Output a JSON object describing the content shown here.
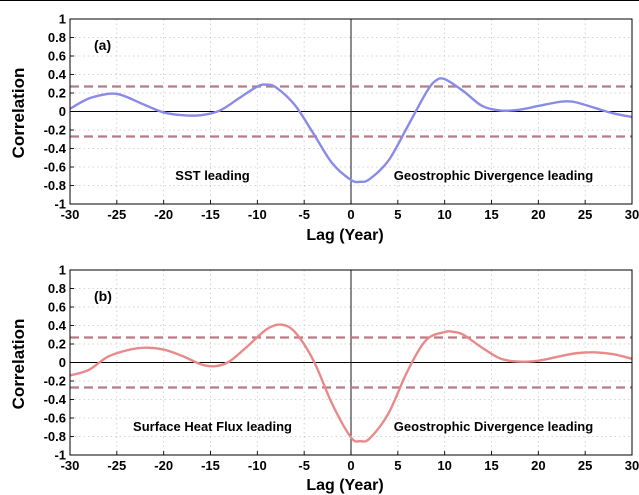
{
  "chart_data": [
    {
      "type": "line",
      "panel_label": "(a)",
      "xlabel": "Lag (Year)",
      "ylabel": "Correlation",
      "xlim": [
        -30,
        30
      ],
      "ylim": [
        -1,
        1
      ],
      "xticks": [
        -30,
        -25,
        -20,
        -15,
        -10,
        -5,
        0,
        5,
        10,
        15,
        20,
        25,
        30
      ],
      "yticks": [
        1,
        0.8,
        0.6,
        0.4,
        0.2,
        0,
        -0.2,
        -0.4,
        -0.6,
        -0.8,
        -1
      ],
      "grid": true,
      "annotations": [
        "SST leading",
        "Geostrophic Divergence leading"
      ],
      "significance_levels": [
        0.27,
        -0.27
      ],
      "series": [
        {
          "color": "#8a8ae8",
          "x": [
            -30,
            -28,
            -26,
            -25,
            -24,
            -22,
            -20,
            -18,
            -16,
            -14,
            -12,
            -10,
            -9,
            -8,
            -6,
            -4,
            -2,
            0,
            1,
            2,
            4,
            6,
            8,
            9,
            10,
            12,
            14,
            16,
            18,
            20,
            22,
            23,
            24,
            26,
            28,
            30
          ],
          "y": [
            0.03,
            0.14,
            0.19,
            0.19,
            0.16,
            0.07,
            -0.01,
            -0.04,
            -0.04,
            0.01,
            0.14,
            0.27,
            0.29,
            0.26,
            0.07,
            -0.24,
            -0.56,
            -0.74,
            -0.76,
            -0.73,
            -0.53,
            -0.17,
            0.2,
            0.33,
            0.35,
            0.22,
            0.06,
            0.01,
            0.02,
            0.06,
            0.1,
            0.11,
            0.1,
            0.04,
            -0.02,
            -0.06
          ]
        }
      ]
    },
    {
      "type": "line",
      "panel_label": "(b)",
      "xlabel": "Lag (Year)",
      "ylabel": "Correlation",
      "xlim": [
        -30,
        30
      ],
      "ylim": [
        -1,
        1
      ],
      "xticks": [
        -30,
        -25,
        -20,
        -15,
        -10,
        -5,
        0,
        5,
        10,
        15,
        20,
        25,
        30
      ],
      "yticks": [
        1,
        0.8,
        0.6,
        0.4,
        0.2,
        0,
        -0.2,
        -0.4,
        -0.6,
        -0.8,
        -1
      ],
      "grid": true,
      "annotations": [
        "Surface Heat Flux leading",
        "Geostrophic Divergence leading"
      ],
      "significance_levels": [
        0.27,
        -0.27
      ],
      "series": [
        {
          "color": "#e88a8a",
          "x": [
            -30,
            -28,
            -26,
            -24,
            -22,
            -20,
            -18,
            -16,
            -14.5,
            -13,
            -11,
            -9,
            -7.5,
            -6,
            -4,
            -2,
            0,
            1,
            2,
            4,
            6,
            8,
            10,
            11,
            12,
            14,
            16,
            18,
            20,
            22,
            24,
            26,
            28,
            30
          ],
          "y": [
            -0.14,
            -0.08,
            0.06,
            0.13,
            0.16,
            0.14,
            0.07,
            -0.02,
            -0.04,
            0.01,
            0.18,
            0.36,
            0.41,
            0.33,
            0.02,
            -0.45,
            -0.81,
            -0.85,
            -0.82,
            -0.55,
            -0.1,
            0.24,
            0.33,
            0.33,
            0.3,
            0.16,
            0.04,
            0.01,
            0.02,
            0.06,
            0.1,
            0.11,
            0.09,
            0.04
          ]
        }
      ]
    }
  ]
}
